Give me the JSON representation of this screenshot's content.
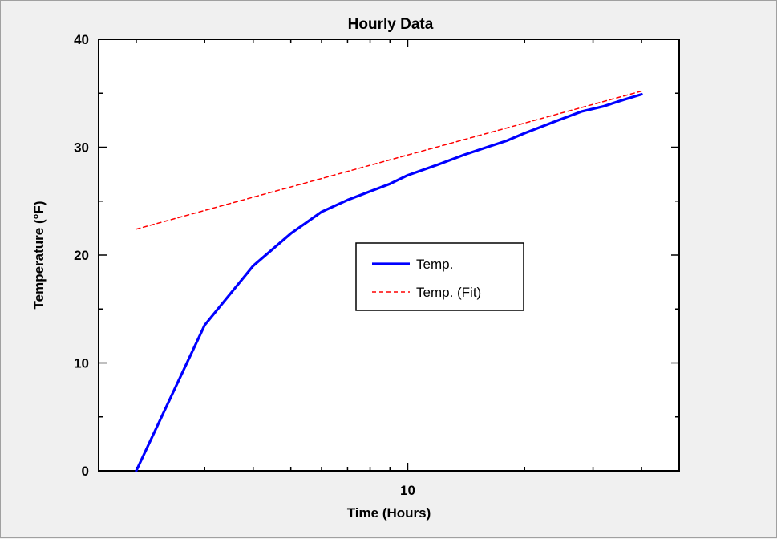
{
  "chart_data": {
    "type": "line",
    "title": "Hourly Data",
    "xlabel": "Time (Hours)",
    "ylabel": "Temperature (°F)",
    "x_scale": "log",
    "xlim": [
      1.6,
      50
    ],
    "ylim": [
      0,
      40
    ],
    "x_tick_labels": [
      {
        "value": 10,
        "label": "10"
      }
    ],
    "y_tick_labels": [
      {
        "value": 0,
        "label": "0"
      },
      {
        "value": 10,
        "label": "10"
      },
      {
        "value": 20,
        "label": "20"
      },
      {
        "value": 30,
        "label": "30"
      },
      {
        "value": 40,
        "label": "40"
      }
    ],
    "grid": false,
    "legend_position": "center",
    "series": [
      {
        "name": "Temp.",
        "color": "#0000ff",
        "line_style": "solid",
        "x": [
          2,
          3,
          4,
          5,
          6,
          7,
          8,
          9,
          10,
          12,
          14,
          16,
          18,
          20,
          24,
          28,
          32,
          36,
          40
        ],
        "y": [
          0,
          13.5,
          19,
          22,
          24,
          25.1,
          25.9,
          26.6,
          27.4,
          28.4,
          29.3,
          30,
          30.6,
          31.3,
          32.4,
          33.3,
          33.8,
          34.4,
          34.9
        ]
      },
      {
        "name": "Temp. (Fit)",
        "color": "#ff0000",
        "line_style": "dashed",
        "x": [
          2,
          40
        ],
        "y": [
          22.4,
          35.2
        ]
      }
    ]
  }
}
